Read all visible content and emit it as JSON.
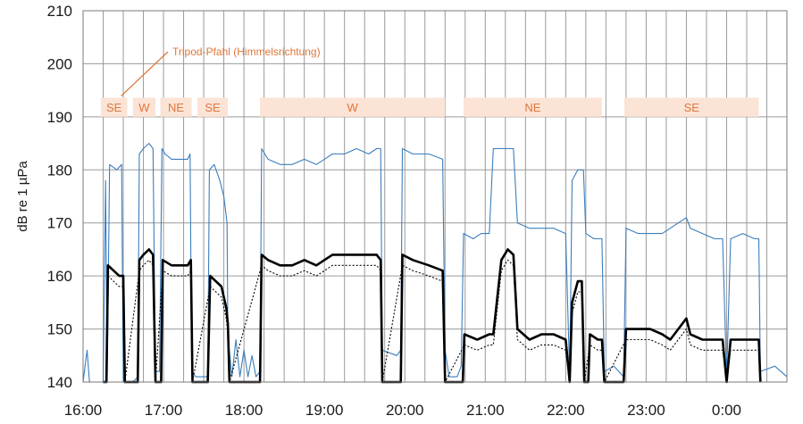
{
  "chart_data": {
    "type": "line",
    "title": "",
    "xlabel": "",
    "ylabel": "dB re 1 µPa",
    "ylim": [
      140,
      210
    ],
    "yticks": [
      140,
      150,
      160,
      170,
      180,
      190,
      200,
      210
    ],
    "xlim": [
      16.0,
      24.75
    ],
    "xtick_values": [
      16,
      17,
      18,
      19,
      20,
      21,
      22,
      23,
      24
    ],
    "xtick_labels": [
      "16:00",
      "17:00",
      "18:00",
      "19:00",
      "20:00",
      "21:00",
      "22:00",
      "23:00",
      "0:00"
    ],
    "grid": true,
    "colors": {
      "upper_series": "#3a7ebf",
      "mean_series": "#000000",
      "lower_series": "#000000",
      "band_fill": "#fbe3d6",
      "band_text": "#e0773a",
      "annotation": "#e0773a",
      "grid": "#9a9a9a"
    },
    "orientation_bands": [
      {
        "label": "SE",
        "start": 16.22,
        "end": 16.55
      },
      {
        "label": "W",
        "start": 16.62,
        "end": 16.9
      },
      {
        "label": "NE",
        "start": 16.96,
        "end": 17.35
      },
      {
        "label": "SE",
        "start": 17.42,
        "end": 17.8
      },
      {
        "label": "W",
        "start": 18.2,
        "end": 20.5
      },
      {
        "label": "NE",
        "start": 20.73,
        "end": 22.45
      },
      {
        "label": "SE",
        "start": 22.73,
        "end": 24.4
      }
    ],
    "annotation": {
      "text": "Tripod-Pfahl (Himmelsrichtung)",
      "points_to": "SE"
    },
    "series": [
      {
        "name": "upper",
        "style": "thin-blue",
        "points": [
          [
            16.0,
            140
          ],
          [
            16.05,
            146
          ],
          [
            16.08,
            140
          ],
          [
            16.25,
            140
          ],
          [
            16.28,
            178
          ],
          [
            16.3,
            140
          ],
          [
            16.33,
            181
          ],
          [
            16.42,
            180
          ],
          [
            16.48,
            181
          ],
          [
            16.5,
            140
          ],
          [
            16.62,
            140
          ],
          [
            16.68,
            141
          ],
          [
            16.7,
            183
          ],
          [
            16.75,
            184
          ],
          [
            16.82,
            185
          ],
          [
            16.87,
            184
          ],
          [
            16.9,
            142
          ],
          [
            16.95,
            142
          ],
          [
            16.98,
            184
          ],
          [
            17.02,
            183
          ],
          [
            17.1,
            182
          ],
          [
            17.2,
            182
          ],
          [
            17.3,
            182
          ],
          [
            17.33,
            183
          ],
          [
            17.35,
            142
          ],
          [
            17.4,
            141
          ],
          [
            17.55,
            141
          ],
          [
            17.57,
            180
          ],
          [
            17.63,
            181
          ],
          [
            17.7,
            178
          ],
          [
            17.75,
            175
          ],
          [
            17.79,
            170
          ],
          [
            17.8,
            149
          ],
          [
            17.85,
            141
          ],
          [
            17.9,
            148
          ],
          [
            17.95,
            141
          ],
          [
            18.0,
            146
          ],
          [
            18.05,
            141
          ],
          [
            18.1,
            145
          ],
          [
            18.15,
            141
          ],
          [
            18.2,
            142
          ],
          [
            18.22,
            184
          ],
          [
            18.3,
            182
          ],
          [
            18.45,
            181
          ],
          [
            18.6,
            181
          ],
          [
            18.75,
            182
          ],
          [
            18.9,
            181
          ],
          [
            19.0,
            182
          ],
          [
            19.1,
            183
          ],
          [
            19.25,
            183
          ],
          [
            19.4,
            184
          ],
          [
            19.55,
            183
          ],
          [
            19.65,
            184
          ],
          [
            19.7,
            184
          ],
          [
            19.72,
            146
          ],
          [
            19.9,
            145
          ],
          [
            19.95,
            146
          ],
          [
            19.97,
            184
          ],
          [
            20.1,
            183
          ],
          [
            20.3,
            183
          ],
          [
            20.47,
            182
          ],
          [
            20.5,
            146
          ],
          [
            20.55,
            141
          ],
          [
            20.65,
            141
          ],
          [
            20.7,
            143
          ],
          [
            20.73,
            168
          ],
          [
            20.85,
            167
          ],
          [
            20.95,
            168
          ],
          [
            21.05,
            168
          ],
          [
            21.1,
            184
          ],
          [
            21.25,
            184
          ],
          [
            21.35,
            184
          ],
          [
            21.4,
            170
          ],
          [
            21.55,
            169
          ],
          [
            21.7,
            169
          ],
          [
            21.85,
            169
          ],
          [
            22.0,
            168
          ],
          [
            22.05,
            141
          ],
          [
            22.08,
            178
          ],
          [
            22.15,
            180
          ],
          [
            22.22,
            180
          ],
          [
            22.25,
            168
          ],
          [
            22.35,
            167
          ],
          [
            22.45,
            167
          ],
          [
            22.48,
            142
          ],
          [
            22.6,
            143
          ],
          [
            22.72,
            141
          ],
          [
            22.75,
            169
          ],
          [
            22.9,
            168
          ],
          [
            23.05,
            168
          ],
          [
            23.2,
            168
          ],
          [
            23.3,
            169
          ],
          [
            23.4,
            170
          ],
          [
            23.5,
            171
          ],
          [
            23.55,
            169
          ],
          [
            23.7,
            168
          ],
          [
            23.85,
            167
          ],
          [
            23.95,
            167
          ],
          [
            24.0,
            141
          ],
          [
            24.05,
            167
          ],
          [
            24.2,
            168
          ],
          [
            24.35,
            167
          ],
          [
            24.4,
            167
          ],
          [
            24.42,
            142
          ],
          [
            24.6,
            143
          ],
          [
            24.75,
            141
          ]
        ]
      },
      {
        "name": "mean",
        "style": "thick-black",
        "points": [
          [
            16.25,
            140
          ],
          [
            16.29,
            140
          ],
          [
            16.31,
            162
          ],
          [
            16.38,
            161
          ],
          [
            16.45,
            160
          ],
          [
            16.5,
            160
          ],
          [
            16.52,
            140
          ],
          [
            16.6,
            140
          ],
          [
            16.68,
            140
          ],
          [
            16.7,
            163
          ],
          [
            16.75,
            164
          ],
          [
            16.82,
            165
          ],
          [
            16.87,
            164
          ],
          [
            16.9,
            140
          ],
          [
            16.97,
            140
          ],
          [
            16.99,
            163
          ],
          [
            17.1,
            162
          ],
          [
            17.2,
            162
          ],
          [
            17.3,
            162
          ],
          [
            17.34,
            163
          ],
          [
            17.36,
            140
          ],
          [
            17.55,
            140
          ],
          [
            17.58,
            160
          ],
          [
            17.65,
            159
          ],
          [
            17.72,
            158
          ],
          [
            17.78,
            154
          ],
          [
            17.8,
            151
          ],
          [
            17.82,
            140
          ],
          [
            18.2,
            140
          ],
          [
            18.22,
            164
          ],
          [
            18.3,
            163
          ],
          [
            18.45,
            162
          ],
          [
            18.6,
            162
          ],
          [
            18.75,
            163
          ],
          [
            18.9,
            162
          ],
          [
            19.0,
            163
          ],
          [
            19.1,
            164
          ],
          [
            19.25,
            164
          ],
          [
            19.4,
            164
          ],
          [
            19.55,
            164
          ],
          [
            19.65,
            164
          ],
          [
            19.7,
            163
          ],
          [
            19.72,
            140
          ],
          [
            19.95,
            140
          ],
          [
            19.97,
            164
          ],
          [
            20.1,
            163
          ],
          [
            20.3,
            162
          ],
          [
            20.47,
            161
          ],
          [
            20.5,
            140
          ],
          [
            20.72,
            140
          ],
          [
            20.74,
            149
          ],
          [
            20.9,
            148
          ],
          [
            21.05,
            149
          ],
          [
            21.1,
            149
          ],
          [
            21.2,
            163
          ],
          [
            21.28,
            165
          ],
          [
            21.35,
            164
          ],
          [
            21.4,
            150
          ],
          [
            21.55,
            148
          ],
          [
            21.7,
            149
          ],
          [
            21.85,
            149
          ],
          [
            22.0,
            148
          ],
          [
            22.05,
            140
          ],
          [
            22.08,
            155
          ],
          [
            22.15,
            159
          ],
          [
            22.2,
            159
          ],
          [
            22.23,
            140
          ],
          [
            22.28,
            140
          ],
          [
            22.3,
            149
          ],
          [
            22.4,
            148
          ],
          [
            22.45,
            148
          ],
          [
            22.48,
            140
          ],
          [
            22.72,
            140
          ],
          [
            22.75,
            150
          ],
          [
            22.9,
            150
          ],
          [
            23.05,
            150
          ],
          [
            23.2,
            149
          ],
          [
            23.3,
            148
          ],
          [
            23.4,
            150
          ],
          [
            23.5,
            152
          ],
          [
            23.55,
            149
          ],
          [
            23.7,
            148
          ],
          [
            23.85,
            148
          ],
          [
            23.95,
            148
          ],
          [
            24.0,
            140
          ],
          [
            24.05,
            148
          ],
          [
            24.2,
            148
          ],
          [
            24.35,
            148
          ],
          [
            24.4,
            148
          ],
          [
            24.42,
            140
          ]
        ]
      },
      {
        "name": "lower",
        "style": "dotted-black",
        "points": [
          [
            16.31,
            160
          ],
          [
            16.38,
            159
          ],
          [
            16.45,
            158
          ],
          [
            16.5,
            158
          ],
          [
            16.52,
            140
          ],
          [
            16.7,
            161
          ],
          [
            16.75,
            162
          ],
          [
            16.82,
            163
          ],
          [
            16.87,
            162
          ],
          [
            16.9,
            140
          ],
          [
            16.99,
            161
          ],
          [
            17.1,
            160
          ],
          [
            17.2,
            160
          ],
          [
            17.3,
            160
          ],
          [
            17.34,
            161
          ],
          [
            17.36,
            140
          ],
          [
            17.58,
            158
          ],
          [
            17.65,
            157
          ],
          [
            17.72,
            156
          ],
          [
            17.78,
            152
          ],
          [
            17.8,
            149
          ],
          [
            17.82,
            140
          ],
          [
            18.22,
            162
          ],
          [
            18.3,
            161
          ],
          [
            18.45,
            160
          ],
          [
            18.6,
            160
          ],
          [
            18.75,
            161
          ],
          [
            18.9,
            160
          ],
          [
            19.0,
            161
          ],
          [
            19.1,
            162
          ],
          [
            19.25,
            162
          ],
          [
            19.4,
            162
          ],
          [
            19.55,
            162
          ],
          [
            19.65,
            162
          ],
          [
            19.7,
            161
          ],
          [
            19.72,
            140
          ],
          [
            19.97,
            162
          ],
          [
            20.1,
            161
          ],
          [
            20.3,
            160
          ],
          [
            20.47,
            159
          ],
          [
            20.5,
            140
          ],
          [
            20.74,
            147
          ],
          [
            20.9,
            146
          ],
          [
            21.05,
            147
          ],
          [
            21.1,
            147
          ],
          [
            21.2,
            161
          ],
          [
            21.28,
            163
          ],
          [
            21.35,
            162
          ],
          [
            21.4,
            148
          ],
          [
            21.55,
            146
          ],
          [
            21.7,
            147
          ],
          [
            21.85,
            147
          ],
          [
            22.0,
            146
          ],
          [
            22.05,
            140
          ],
          [
            22.08,
            153
          ],
          [
            22.15,
            157
          ],
          [
            22.2,
            157
          ],
          [
            22.23,
            140
          ],
          [
            22.3,
            147
          ],
          [
            22.4,
            146
          ],
          [
            22.45,
            146
          ],
          [
            22.48,
            140
          ],
          [
            22.75,
            148
          ],
          [
            22.9,
            148
          ],
          [
            23.05,
            148
          ],
          [
            23.2,
            147
          ],
          [
            23.3,
            146
          ],
          [
            23.4,
            148
          ],
          [
            23.5,
            150
          ],
          [
            23.55,
            147
          ],
          [
            23.7,
            146
          ],
          [
            23.85,
            146
          ],
          [
            23.95,
            146
          ],
          [
            24.0,
            140
          ],
          [
            24.05,
            146
          ],
          [
            24.2,
            146
          ],
          [
            24.35,
            146
          ],
          [
            24.4,
            146
          ],
          [
            24.42,
            140
          ]
        ]
      }
    ]
  }
}
